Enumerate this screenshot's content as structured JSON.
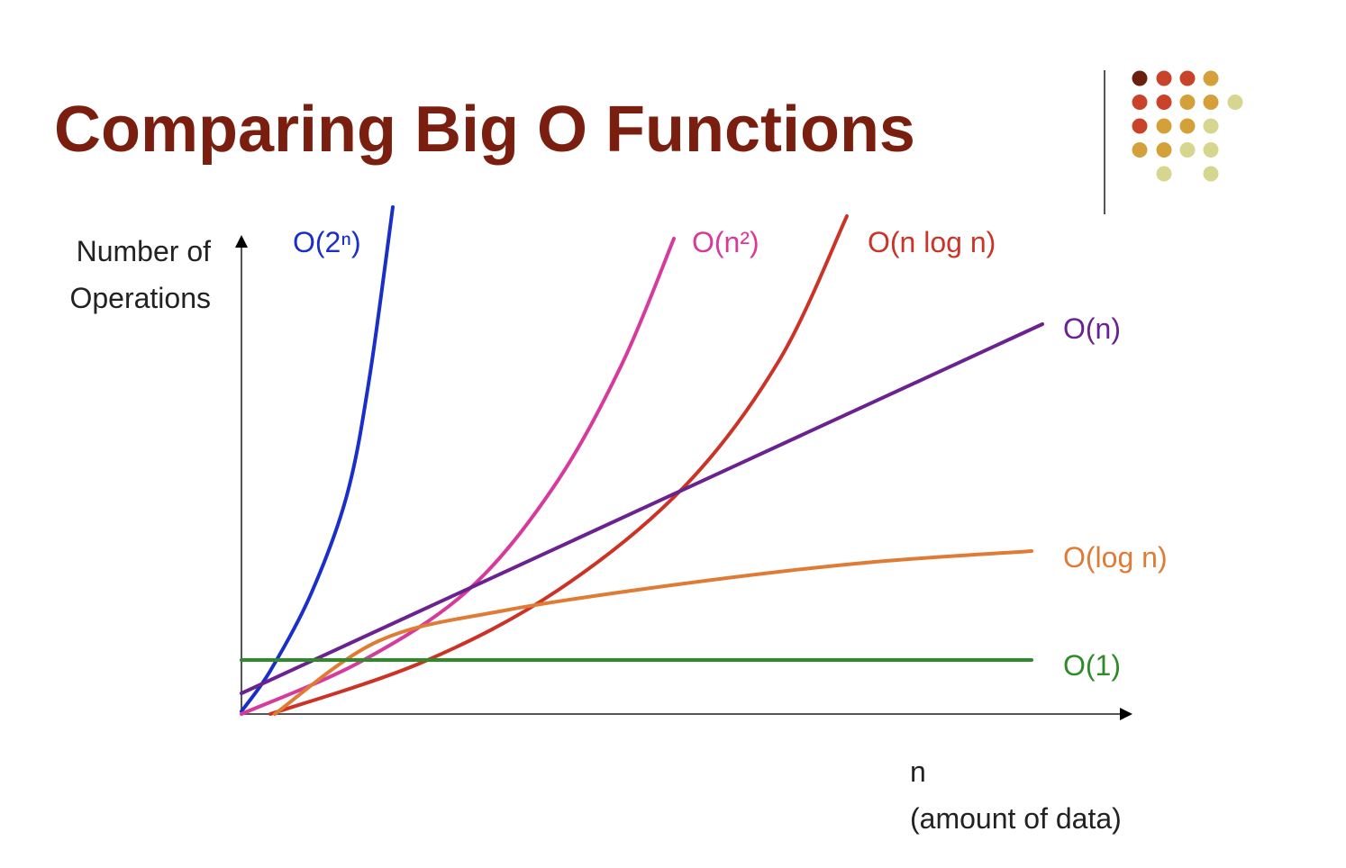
{
  "title": "Comparing Big O Functions",
  "y_axis_label_lines": [
    "Number of",
    "Operations"
  ],
  "x_axis_label_lines": [
    "n",
    "(amount of data)"
  ],
  "curves": [
    {
      "label": "O(2ⁿ)",
      "color": "#1a2fc9"
    },
    {
      "label": "O(n²)",
      "color": "#d63a9c"
    },
    {
      "label": "O(n log n)",
      "color": "#cc3327"
    },
    {
      "label": "O(n)",
      "color": "#6a2290"
    },
    {
      "label": "O(log n)",
      "color": "#e07b35"
    },
    {
      "label": "O(1)",
      "color": "#2e8b2a"
    }
  ]
}
